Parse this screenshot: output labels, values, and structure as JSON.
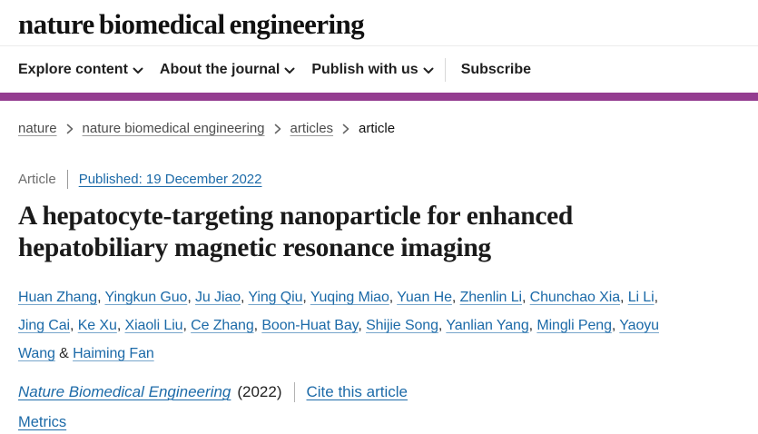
{
  "header": {
    "logo": "nature biomedical engineering"
  },
  "nav": {
    "items": [
      {
        "label": "Explore content",
        "dropdown": true
      },
      {
        "label": "About the journal",
        "dropdown": true
      },
      {
        "label": "Publish with us",
        "dropdown": true
      }
    ],
    "subscribe": "Subscribe"
  },
  "breadcrumb": [
    "nature",
    "nature biomedical engineering",
    "articles",
    "article"
  ],
  "article": {
    "type": "Article",
    "published": "Published: 19 December 2022",
    "title": "A hepatocyte-targeting nanoparticle for enhanced hepatobiliary magnetic resonance imaging",
    "authors": [
      "Huan Zhang",
      "Yingkun Guo",
      "Ju Jiao",
      "Ying Qiu",
      "Yuqing Miao",
      "Yuan He",
      "Zhenlin Li",
      "Chunchao Xia",
      "Li Li",
      "Jing Cai",
      "Ke Xu",
      "Xiaoli Liu",
      "Ce Zhang",
      "Boon-Huat Bay",
      "Shijie Song",
      "Yanlian Yang",
      "Mingli Peng",
      "Yaoyu Wang",
      "Haiming Fan"
    ],
    "journal": "Nature Biomedical Engineering",
    "year": "(2022)",
    "cite": "Cite this article",
    "metrics": "Metrics"
  },
  "colors": {
    "accent": "#943d90",
    "link": "#1c6aa8"
  }
}
